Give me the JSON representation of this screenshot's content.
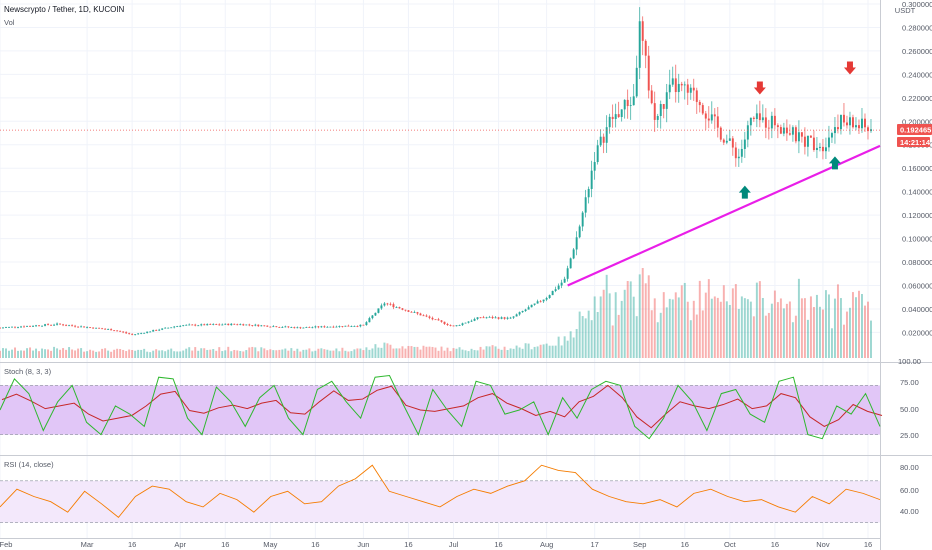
{
  "header": {
    "title": "Newscrypto / Tether, 1D, KUCOIN",
    "volume_label": "Vol",
    "currency": "USDT"
  },
  "price_badge": {
    "price": "0.192465",
    "countdown": "14:21:14"
  },
  "indicators": {
    "stoch": {
      "label": "Stoch (8, 3, 3)",
      "upper": 80,
      "lower": 20,
      "ticks": [
        "100.00",
        "75.00",
        "50.00",
        "25.00"
      ]
    },
    "rsi": {
      "label": "RSI (14, close)",
      "upper": 70,
      "lower": 30,
      "ticks": [
        "80.00",
        "60.00",
        "40.00"
      ]
    }
  },
  "colors": {
    "up": "#26a69a",
    "down": "#ef5350",
    "trendline": "#e91ee8",
    "stoch_k": "#2eb82e",
    "stoch_d": "#c62828",
    "stoch_band": "#e1c6f7",
    "rsi_line": "#f57c00",
    "rsi_band": "#f3e8fb",
    "arrow_down": "#e53935",
    "arrow_up": "#00897b",
    "badge_bg": "#ef5350"
  },
  "chart_data": {
    "type": "candlestick",
    "title": "Newscrypto / Tether, 1D, KUCOIN",
    "y_axis": {
      "unit": "USDT",
      "range": [
        0.005,
        0.3
      ],
      "ticks": [
        "0.020000",
        "0.040000",
        "0.060000",
        "0.080000",
        "0.100000",
        "0.120000",
        "0.140000",
        "0.160000",
        "0.180000",
        "0.200000",
        "0.220000",
        "0.240000",
        "0.260000",
        "0.280000",
        "0.300000"
      ]
    },
    "x_axis": {
      "range": [
        "2020-02-01",
        "2020-11-20"
      ],
      "ticks": [
        {
          "date": "2020-02-01",
          "label": "Feb"
        },
        {
          "date": "2020-03-01",
          "label": "Mar"
        },
        {
          "date": "2020-03-16",
          "label": "16"
        },
        {
          "date": "2020-04-01",
          "label": "Apr"
        },
        {
          "date": "2020-04-16",
          "label": "16"
        },
        {
          "date": "2020-05-01",
          "label": "May"
        },
        {
          "date": "2020-05-16",
          "label": "16"
        },
        {
          "date": "2020-06-01",
          "label": "Jun"
        },
        {
          "date": "2020-06-16",
          "label": "16"
        },
        {
          "date": "2020-07-01",
          "label": "Jul"
        },
        {
          "date": "2020-07-16",
          "label": "16"
        },
        {
          "date": "2020-08-01",
          "label": "Aug"
        },
        {
          "date": "2020-08-17",
          "label": "17"
        },
        {
          "date": "2020-09-01",
          "label": "Sep"
        },
        {
          "date": "2020-09-16",
          "label": "16"
        },
        {
          "date": "2020-10-01",
          "label": "Oct"
        },
        {
          "date": "2020-10-16",
          "label": "16"
        },
        {
          "date": "2020-11-01",
          "label": "Nov"
        },
        {
          "date": "2020-11-16",
          "label": "16"
        }
      ]
    },
    "price_path": [
      {
        "date": "2020-02-01",
        "close": 0.024
      },
      {
        "date": "2020-02-20",
        "close": 0.027
      },
      {
        "date": "2020-03-10",
        "close": 0.022
      },
      {
        "date": "2020-03-16",
        "close": 0.018
      },
      {
        "date": "2020-04-01",
        "close": 0.026
      },
      {
        "date": "2020-04-20",
        "close": 0.027
      },
      {
        "date": "2020-05-10",
        "close": 0.024
      },
      {
        "date": "2020-06-01",
        "close": 0.026
      },
      {
        "date": "2020-06-08",
        "close": 0.045
      },
      {
        "date": "2020-06-20",
        "close": 0.035
      },
      {
        "date": "2020-07-01",
        "close": 0.025
      },
      {
        "date": "2020-07-10",
        "close": 0.033
      },
      {
        "date": "2020-07-20",
        "close": 0.032
      },
      {
        "date": "2020-08-01",
        "close": 0.05
      },
      {
        "date": "2020-08-07",
        "close": 0.065
      },
      {
        "date": "2020-08-12",
        "close": 0.11
      },
      {
        "date": "2020-08-17",
        "close": 0.17
      },
      {
        "date": "2020-08-22",
        "close": 0.2
      },
      {
        "date": "2020-08-30",
        "close": 0.22
      },
      {
        "date": "2020-09-01",
        "close": 0.28
      },
      {
        "date": "2020-09-06",
        "close": 0.2
      },
      {
        "date": "2020-09-12",
        "close": 0.23
      },
      {
        "date": "2020-09-20",
        "close": 0.22
      },
      {
        "date": "2020-09-28",
        "close": 0.19
      },
      {
        "date": "2020-10-04",
        "close": 0.17
      },
      {
        "date": "2020-10-08",
        "close": 0.2
      },
      {
        "date": "2020-10-16",
        "close": 0.2
      },
      {
        "date": "2020-10-24",
        "close": 0.185
      },
      {
        "date": "2020-11-01",
        "close": 0.18
      },
      {
        "date": "2020-11-06",
        "close": 0.2
      },
      {
        "date": "2020-11-15",
        "close": 0.195
      },
      {
        "date": "2020-11-17",
        "close": 0.192465
      }
    ],
    "current_price": 0.192465,
    "trendline": [
      {
        "date": "2020-08-08",
        "price": 0.06
      },
      {
        "date": "2020-11-20",
        "price": 0.179
      }
    ],
    "markers": [
      {
        "type": "arrow-down",
        "date": "2020-10-11",
        "price": 0.228
      },
      {
        "type": "arrow-up",
        "date": "2020-10-06",
        "price": 0.14
      },
      {
        "type": "arrow-down",
        "date": "2020-11-10",
        "price": 0.245
      },
      {
        "type": "arrow-up",
        "date": "2020-11-05",
        "price": 0.165
      }
    ],
    "stoch_k_path": [
      50,
      88,
      70,
      25,
      60,
      80,
      35,
      20,
      55,
      45,
      30,
      90,
      88,
      40,
      20,
      78,
      60,
      30,
      65,
      80,
      40,
      20,
      75,
      85,
      60,
      40,
      90,
      92,
      55,
      20,
      75,
      50,
      30,
      85,
      80,
      45,
      50,
      60,
      20,
      65,
      40,
      75,
      85,
      80,
      30,
      15,
      40,
      80,
      60,
      25,
      70,
      75,
      45,
      35,
      85,
      90,
      20,
      15,
      55,
      45,
      70,
      30
    ],
    "rsi_path": [
      45,
      62,
      55,
      50,
      40,
      60,
      48,
      35,
      55,
      65,
      62,
      50,
      45,
      58,
      52,
      40,
      55,
      60,
      48,
      50,
      65,
      72,
      85,
      60,
      55,
      50,
      45,
      55,
      62,
      58,
      65,
      70,
      85,
      80,
      78,
      62,
      55,
      50,
      48,
      52,
      45,
      58,
      62,
      55,
      50,
      52,
      45,
      40,
      55,
      48,
      62,
      58,
      52
    ]
  }
}
